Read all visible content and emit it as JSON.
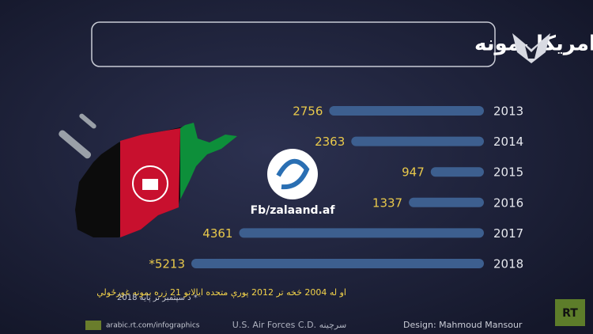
{
  "chart_data": {
    "type": "bar",
    "orientation": "horizontal",
    "title": "افغانستان او د امریکا بمونه",
    "categories": [
      "2013",
      "2014",
      "2015",
      "2016",
      "2017",
      "2018"
    ],
    "values": [
      2756,
      2363,
      947,
      1337,
      4361,
      5213
    ],
    "value_labels": [
      "2756",
      "2363",
      "947",
      "1337",
      "4361",
      "*5213"
    ],
    "color": "#3d5f8f",
    "label_color": "#e9c94b",
    "watermark": "Fb/zalaand.af",
    "note": "او له 2004 څخه تر 2012 پورې متحده ایالاتو 21 زره بمونه غورځولي",
    "footnote": "* د سپتمبر تر پایه 2018",
    "website": "arabic.rt.com/infographics",
    "source": "U.S. Air Forces C.D. سرچينه",
    "credit": "Design: Mahmoud Mansour",
    "logo": "RT"
  }
}
